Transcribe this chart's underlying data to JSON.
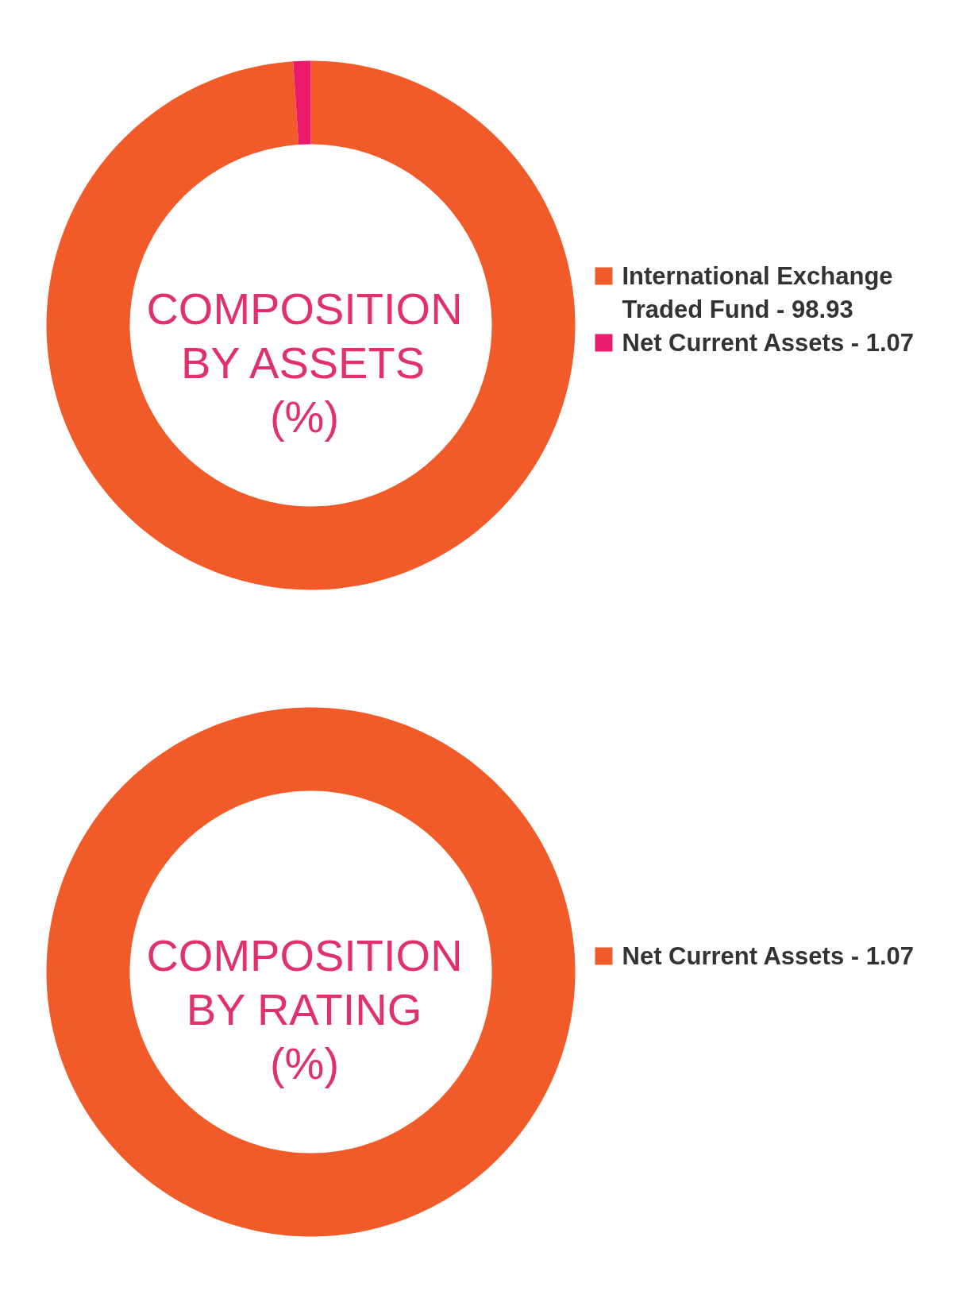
{
  "chart_data": [
    {
      "type": "donut",
      "title": "COMPOSITION BY ASSETS (%)",
      "categories": [
        "International Exchange Traded Fund",
        "Net Current Assets"
      ],
      "values": [
        98.93,
        1.07
      ],
      "value_labels": [
        "98.93",
        "1.07"
      ],
      "colors": [
        "#f15a29",
        "#ec1a6c"
      ],
      "legend": "right"
    },
    {
      "type": "donut",
      "title": "COMPOSITION BY RATING (%)",
      "categories": [
        "Net Current Assets"
      ],
      "values": [
        1.07
      ],
      "value_labels": [
        "1.07"
      ],
      "colors": [
        "#f15a29"
      ],
      "legend": "right"
    }
  ]
}
